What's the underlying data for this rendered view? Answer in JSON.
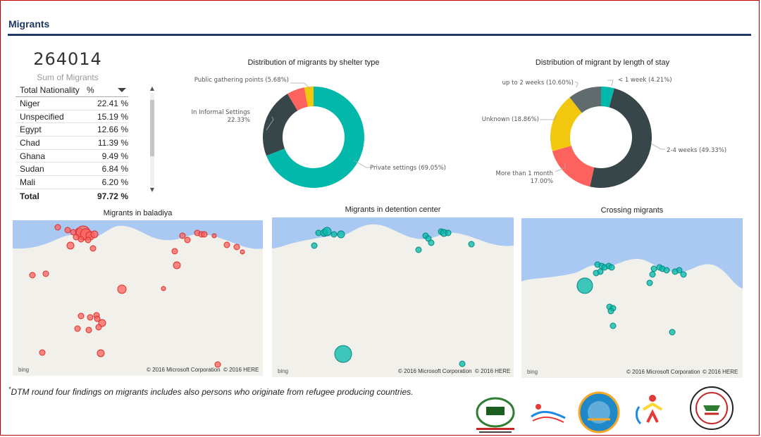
{
  "page": {
    "title": "Migrants"
  },
  "kpi": {
    "value": "264014",
    "label": "Sum of Migrants"
  },
  "nationality_table": {
    "headers": [
      "Total Nationality",
      "%"
    ],
    "rows": [
      {
        "name": "Niger",
        "pct": "22.41 %"
      },
      {
        "name": "Unspecified",
        "pct": "15.19 %"
      },
      {
        "name": "Egypt",
        "pct": "12.66 %"
      },
      {
        "name": "Chad",
        "pct": "11.39 %"
      },
      {
        "name": "Ghana",
        "pct": "9.49 %"
      },
      {
        "name": "Sudan",
        "pct": "6.84 %"
      },
      {
        "name": "Mali",
        "pct": "6.20 %"
      }
    ],
    "total": {
      "name": "Total",
      "pct": "97.72 %"
    }
  },
  "shelter_chart": {
    "title": "Distribution of migrants by shelter type",
    "labels": {
      "public": "Public gathering points (5.68%)",
      "informal_1": "In Informal Settings",
      "informal_2": "22.33%",
      "private": "Private settings (69.05%)"
    }
  },
  "stay_chart": {
    "title": "Distribution of migrant by length of stay",
    "labels": {
      "week": "< 1 week (4.21%)",
      "two_weeks": "up to 2 weeks (10.60%)",
      "unknown": "Unknown (18.86%)",
      "month_1": "More than 1 month",
      "month_2": "17.00%",
      "weeks_2_4": "2-4 weeks (49.33%)"
    }
  },
  "chart_data": [
    {
      "type": "pie",
      "title": "Distribution of migrants by shelter type",
      "slices": [
        {
          "name": "Private settings",
          "value": 69.05,
          "color": "#01b8aa"
        },
        {
          "name": "In Informal Settings",
          "value": 22.33,
          "color": "#374649"
        },
        {
          "name": "Public gathering points",
          "value": 5.68,
          "color": "#fd625e"
        },
        {
          "name": "",
          "value": 2.94,
          "color": "#f2c80f"
        }
      ]
    },
    {
      "type": "pie",
      "title": "Distribution of migrant by length of stay",
      "slices": [
        {
          "name": "< 1 week",
          "value": 4.21,
          "color": "#01b8aa"
        },
        {
          "name": "2-4 weeks",
          "value": 49.33,
          "color": "#374649"
        },
        {
          "name": "More than 1 month",
          "value": 17.0,
          "color": "#fd625e"
        },
        {
          "name": "Unknown",
          "value": 18.86,
          "color": "#f2c80f"
        },
        {
          "name": "up to 2 weeks",
          "value": 10.6,
          "color": "#5f6b6d"
        }
      ]
    }
  ],
  "maps": {
    "baladiya": {
      "title": "Migrants in baladiya",
      "color": "#fd625e"
    },
    "detention": {
      "title": "Migrants in detention center",
      "color": "#01b8aa"
    },
    "crossing": {
      "title": "Crossing migrants",
      "color": "#01b8aa"
    },
    "bing_label": "bing",
    "copyright_ms": "© 2016 Microsoft Corporation",
    "copyright_here": "© 2016 HERE"
  },
  "footnote": {
    "mark": "*",
    "text": "DTM round four findings on migrants includes also persons who originate from refugee producing countries."
  }
}
